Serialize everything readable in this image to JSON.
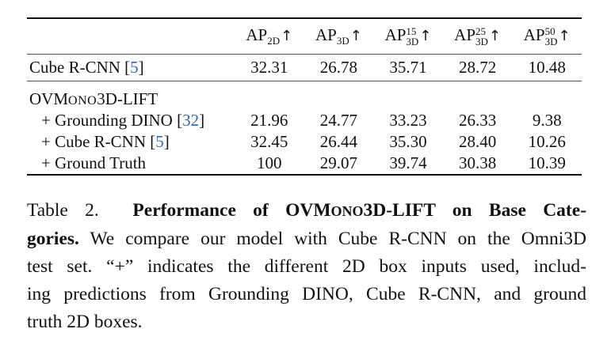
{
  "table": {
    "header": {
      "method": "",
      "columns": [
        {
          "base": "AP",
          "sub": "2D",
          "sup": "",
          "arrow": "↑"
        },
        {
          "base": "AP",
          "sub": "3D",
          "sup": "",
          "arrow": "↑"
        },
        {
          "base": "AP",
          "sub": "3D",
          "sup": "15",
          "arrow": "↑"
        },
        {
          "base": "AP",
          "sub": "3D",
          "sup": "25",
          "arrow": "↑"
        },
        {
          "base": "AP",
          "sub": "3D",
          "sup": "50",
          "arrow": "↑"
        }
      ]
    },
    "baseline": {
      "name": "Cube R-CNN",
      "cite": "5",
      "values": [
        "32.31",
        "26.78",
        "35.71",
        "28.72",
        "10.48"
      ]
    },
    "group_title": {
      "prefix": "OVM",
      "smallcaps": "ONO",
      "suffix": "3D-LIFT"
    },
    "rows": [
      {
        "name": "+ Grounding DINO",
        "cite": "32",
        "values": [
          "21.96",
          "24.77",
          "33.23",
          "26.33",
          "9.38"
        ]
      },
      {
        "name": "+ Cube R-CNN",
        "cite": "5",
        "values": [
          "32.45",
          "26.44",
          "35.30",
          "28.40",
          "10.26"
        ]
      },
      {
        "name": "+ Ground Truth",
        "cite": "",
        "values": [
          "100",
          "29.07",
          "39.74",
          "30.38",
          "10.39"
        ]
      }
    ]
  },
  "caption": {
    "lines": [
      {
        "label": "Table 2.",
        "bold_a": "Performance of OVM",
        "bold_sc": "ONO",
        "bold_b": "3D-LIFT on Base Cate-"
      },
      {
        "bold": "gories.",
        "text": " We compare our model with Cube R-CNN on the Omni3D"
      },
      {
        "text": "test set.  “+” indicates the different 2D box inputs used, includ-"
      },
      {
        "text": "ing predictions from Grounding DINO, Cube R-CNN, and ground"
      },
      {
        "text": "truth 2D boxes."
      }
    ]
  }
}
